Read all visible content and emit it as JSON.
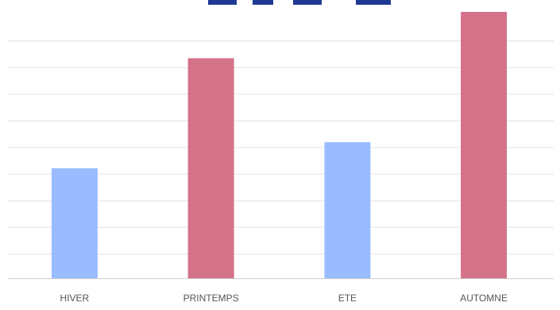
{
  "chart_data": {
    "type": "bar",
    "title": "",
    "xlabel": "",
    "ylabel": "",
    "categories": [
      "HIVER",
      "PRINTEMPS",
      "ETE",
      "AUTOMNE"
    ],
    "values": [
      3.8,
      7.6,
      4.7,
      9.2
    ],
    "ylim": [
      0,
      9.2
    ],
    "gridlines": 10,
    "grid": true,
    "legend": "none",
    "bar_colors": [
      "#9abcff",
      "#d4728a",
      "#9abcff",
      "#d4728a"
    ],
    "title_color": "#1f3a93"
  }
}
